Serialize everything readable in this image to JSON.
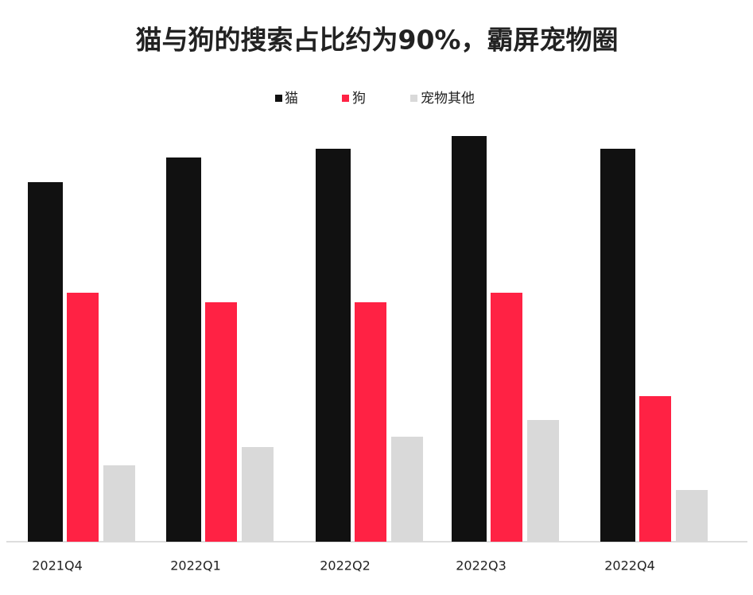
{
  "chart_data": {
    "type": "bar",
    "title": "猫与狗的搜索占比约为90%，霸屏宠物圈",
    "categories": [
      "2021Q4",
      "2022Q1",
      "2022Q2",
      "2022Q3",
      "2022Q4"
    ],
    "series": [
      {
        "name": "猫",
        "color": "#111111",
        "values": [
          452,
          483,
          494,
          510,
          494
        ]
      },
      {
        "name": "狗",
        "color": "#ff2244",
        "values": [
          313,
          301,
          301,
          313,
          183
        ]
      },
      {
        "name": "宠物其他",
        "color": "#d9d9d9",
        "values": [
          96,
          119,
          132,
          153,
          65
        ]
      }
    ],
    "legend": "top"
  }
}
